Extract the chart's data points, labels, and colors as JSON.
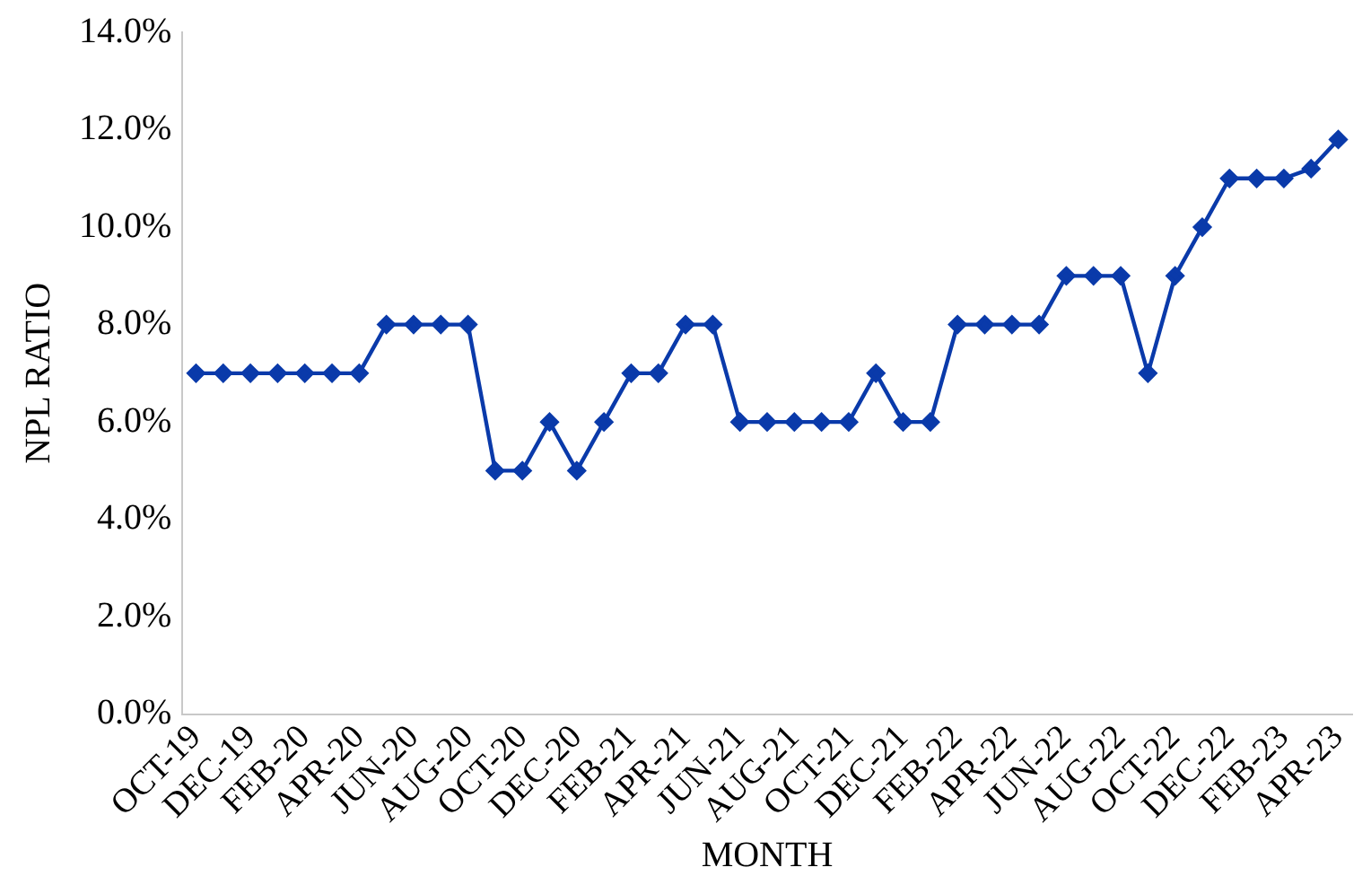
{
  "chart_data": {
    "type": "line",
    "xlabel": "MONTH",
    "ylabel": "NPL RATIO",
    "categories": [
      "OCT-19",
      null,
      "DEC-19",
      null,
      "FEB-20",
      null,
      "APR-20",
      null,
      "JUN-20",
      null,
      "AUG-20",
      null,
      "OCT-20",
      null,
      "DEC-20",
      null,
      "FEB-21",
      null,
      "APR-21",
      null,
      "JUN-21",
      null,
      "AUG-21",
      null,
      "OCT-21",
      null,
      "DEC-21",
      null,
      "FEB-22",
      null,
      "APR-22",
      null,
      "JUN-22",
      null,
      "AUG-22",
      null,
      "OCT-22",
      null,
      "DEC-22",
      null,
      "FEB-23",
      null,
      "APR-23"
    ],
    "series": [
      {
        "color": "#0a3aaa",
        "values": [
          7,
          7,
          7,
          7,
          7,
          7,
          7,
          8,
          8,
          8,
          8,
          5,
          5,
          6,
          5,
          6,
          7,
          7,
          8,
          8,
          6,
          6,
          6,
          6,
          6,
          7,
          6,
          6,
          8,
          8,
          8,
          8,
          9,
          9,
          9,
          7,
          9,
          10,
          11,
          11,
          11,
          11.2,
          11.8
        ]
      }
    ],
    "ylim": [
      0,
      14
    ],
    "yticks": [
      {
        "value": 0,
        "label": "0.0%"
      },
      {
        "value": 2,
        "label": "2.0%"
      },
      {
        "value": 4,
        "label": "4.0%"
      },
      {
        "value": 6,
        "label": "6.0%"
      },
      {
        "value": 8,
        "label": "8.0%"
      },
      {
        "value": 10,
        "label": "10.0%"
      },
      {
        "value": 12,
        "label": "12.0%"
      },
      {
        "value": 14,
        "label": "14.0%"
      }
    ],
    "grid": false,
    "legend": false,
    "marker": "diamond",
    "line_style": "solid"
  }
}
